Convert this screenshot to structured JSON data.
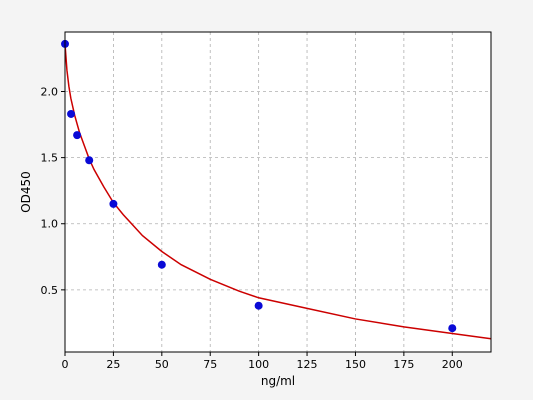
{
  "chart_data": {
    "type": "scatter",
    "title": "",
    "xlabel": "ng/ml",
    "ylabel": "OD450",
    "xlim": [
      0,
      220
    ],
    "ylim": [
      0.03,
      2.45
    ],
    "xticks": [
      0,
      25,
      50,
      75,
      100,
      125,
      150,
      175,
      200
    ],
    "yticks": [
      0.5,
      1.0,
      1.5,
      2.0
    ],
    "xtick_labels": [
      "0",
      "25",
      "50",
      "75",
      "100",
      "125",
      "150",
      "175",
      "200"
    ],
    "ytick_labels": [
      "0.5",
      "1.0",
      "1.5",
      "2.0"
    ],
    "grid": true,
    "points": {
      "x": [
        0,
        3.125,
        6.25,
        12.5,
        25,
        50,
        100,
        200
      ],
      "y": [
        2.36,
        1.83,
        1.67,
        1.48,
        1.15,
        0.69,
        0.38,
        0.21
      ]
    },
    "fit_curve": {
      "x": [
        0,
        1,
        2,
        3,
        5,
        7.5,
        10,
        12.5,
        15,
        20,
        25,
        30,
        40,
        50,
        60,
        75,
        90,
        100,
        125,
        150,
        175,
        200,
        220
      ],
      "y": [
        2.36,
        2.16,
        2.04,
        1.95,
        1.82,
        1.69,
        1.59,
        1.49,
        1.41,
        1.28,
        1.16,
        1.07,
        0.91,
        0.79,
        0.69,
        0.58,
        0.49,
        0.44,
        0.36,
        0.28,
        0.22,
        0.17,
        0.13
      ]
    },
    "colors": {
      "points": "#0a0ad6",
      "curve": "#cc0000",
      "grid": "#b0b0b0",
      "plot_bg": "#ffffff",
      "page_bg": "#f4f4f4"
    }
  }
}
